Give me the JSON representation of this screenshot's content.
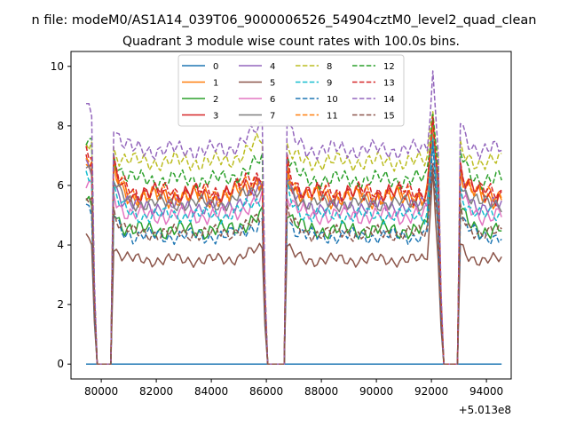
{
  "chart_data": {
    "type": "line",
    "suptitle": "n file: modeM0/AS1A14_039T06_9000006526_54904cztM0_level2_quad_clean",
    "title": "Quadrant 3 module wise count rates with 100.0s bins.",
    "xlabel": "",
    "ylabel": "",
    "x_offset_label": "+5.013e8",
    "xlim": [
      78900,
      94900
    ],
    "ylim": [
      -0.5,
      10.5
    ],
    "x_ticks": [
      80000,
      82000,
      84000,
      86000,
      88000,
      90000,
      92000,
      94000
    ],
    "x_tick_labels": [
      "80000",
      "82000",
      "84000",
      "86000",
      "88000",
      "90000",
      "92000",
      "94000"
    ],
    "y_ticks": [
      0,
      2,
      4,
      6,
      8,
      10
    ],
    "y_tick_labels": [
      "0",
      "2",
      "4",
      "6",
      "8",
      "10"
    ],
    "x_start": 79450,
    "x_end": 94550,
    "bin_width": 100,
    "gaps": [
      [
        79850,
        80350
      ],
      [
        86050,
        86650
      ],
      [
        92450,
        92950
      ]
    ],
    "legend_position": "upper center",
    "legend_ncol": 4,
    "series": [
      {
        "name": "0",
        "color": "#1f77b4",
        "dash": "solid",
        "base": 0.0,
        "start": 0.0,
        "peak": 0.0,
        "amp": 0.0
      },
      {
        "name": "1",
        "color": "#ff7f0e",
        "dash": "solid",
        "base": 5.6,
        "start": 7.0,
        "peak": 8.2,
        "amp": 0.4
      },
      {
        "name": "2",
        "color": "#2ca02c",
        "dash": "solid",
        "base": 4.5,
        "start": 5.6,
        "peak": 8.0,
        "amp": 0.35
      },
      {
        "name": "3",
        "color": "#d62728",
        "dash": "solid",
        "base": 5.7,
        "start": 7.1,
        "peak": 8.0,
        "amp": 0.4
      },
      {
        "name": "4",
        "color": "#9467bd",
        "dash": "solid",
        "base": 5.3,
        "start": 6.7,
        "peak": 8.2,
        "amp": 0.35
      },
      {
        "name": "5",
        "color": "#8c564b",
        "dash": "solid",
        "base": 3.5,
        "start": 4.2,
        "peak": 6.5,
        "amp": 0.25
      },
      {
        "name": "6",
        "color": "#e377c2",
        "dash": "solid",
        "base": 5.0,
        "start": 6.2,
        "peak": 7.6,
        "amp": 0.35
      },
      {
        "name": "7",
        "color": "#7f7f7f",
        "dash": "solid",
        "base": 5.4,
        "start": 6.6,
        "peak": 7.8,
        "amp": 0.3
      },
      {
        "name": "8",
        "color": "#bcbd22",
        "dash": "dashed",
        "base": 6.8,
        "start": 7.4,
        "peak": 8.7,
        "amp": 0.35
      },
      {
        "name": "9",
        "color": "#17becf",
        "dash": "dashed",
        "base": 5.0,
        "start": 6.4,
        "peak": 7.8,
        "amp": 0.3
      },
      {
        "name": "10",
        "color": "#1f77b4",
        "dash": "dashed",
        "base": 4.3,
        "start": 5.4,
        "peak": 7.2,
        "amp": 0.3
      },
      {
        "name": "11",
        "color": "#ff7f0e",
        "dash": "dashed",
        "base": 5.7,
        "start": 7.0,
        "peak": 8.2,
        "amp": 0.35
      },
      {
        "name": "12",
        "color": "#2ca02c",
        "dash": "dashed",
        "base": 6.2,
        "start": 7.6,
        "peak": 8.6,
        "amp": 0.35
      },
      {
        "name": "13",
        "color": "#d62728",
        "dash": "dashed",
        "base": 5.8,
        "start": 7.2,
        "peak": 8.4,
        "amp": 0.35
      },
      {
        "name": "14",
        "color": "#9467bd",
        "dash": "dashed",
        "base": 7.2,
        "start": 8.6,
        "peak": 9.8,
        "amp": 0.35
      },
      {
        "name": "15",
        "color": "#8c564b",
        "dash": "dashed",
        "base": 4.4,
        "start": 5.6,
        "peak": 7.0,
        "amp": 0.3
      }
    ]
  }
}
